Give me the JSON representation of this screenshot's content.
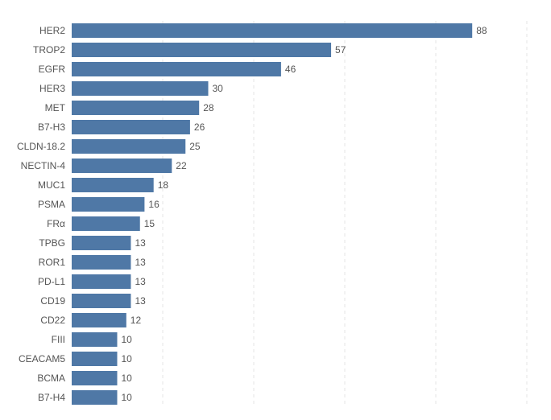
{
  "chart_data": {
    "type": "bar",
    "orientation": "horizontal",
    "title": "",
    "xlabel": "",
    "ylabel": "",
    "categories": [
      "HER2",
      "TROP2",
      "EGFR",
      "HER3",
      "MET",
      "B7-H3",
      "CLDN-18.2",
      "NECTIN-4",
      "MUC1",
      "PSMA",
      "FRα",
      "TPBG",
      "ROR1",
      "PD-L1",
      "CD19",
      "CD22",
      "FIII",
      "CEACAM5",
      "BCMA",
      "B7-H4"
    ],
    "values": [
      88,
      57,
      46,
      30,
      28,
      26,
      25,
      22,
      18,
      16,
      15,
      13,
      13,
      13,
      13,
      12,
      10,
      10,
      10,
      10
    ],
    "value_labels": [
      "88",
      "57",
      "46",
      "30",
      "28",
      "26",
      "25",
      "22",
      "18",
      "16",
      "15",
      "13",
      "13",
      "13",
      "13",
      "12",
      "10",
      "10",
      "10",
      "10"
    ],
    "xlim": [
      0,
      100
    ],
    "grid": true,
    "bar_color": "#4f78a6",
    "label_color": "#555555",
    "grid_color": "#e4e4e4"
  }
}
